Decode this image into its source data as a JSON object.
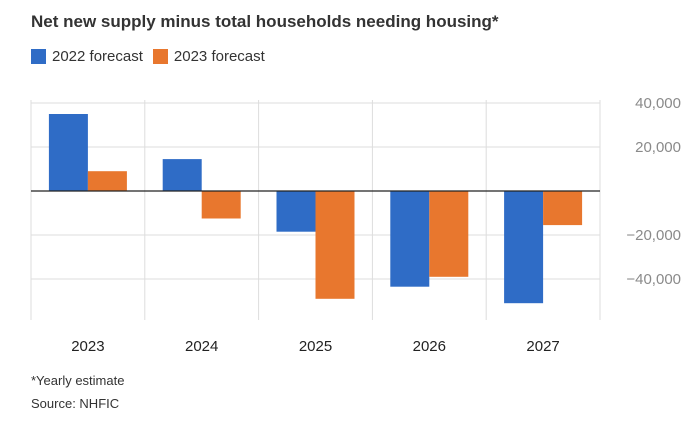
{
  "title": "Net new supply minus total households needing housing*",
  "footnote": "*Yearly estimate",
  "source": "Source: NHFIC",
  "colors": {
    "series1": "#2f6cc6",
    "series2": "#e8772e",
    "grid": "#dddddd",
    "zero": "#222222",
    "tick_label": "#8a8a8a"
  },
  "chart_data": {
    "type": "bar",
    "title": "Net new supply minus total households needing housing*",
    "categories": [
      "2023",
      "2024",
      "2025",
      "2026",
      "2027"
    ],
    "series": [
      {
        "name": "2022 forecast",
        "values": [
          35000,
          14500,
          -18500,
          -43500,
          -51000
        ]
      },
      {
        "name": "2023 forecast",
        "values": [
          9000,
          -12500,
          -49000,
          -39000,
          -15500
        ]
      }
    ],
    "yticks": [
      40000,
      20000,
      -20000,
      -40000
    ],
    "ytick_labels": [
      "40,000",
      "20,000",
      "−20,000",
      "−40,000"
    ],
    "ylim": [
      -51000,
      40000
    ],
    "grid": true,
    "legend": "top-left",
    "xlabel": "",
    "ylabel": ""
  }
}
